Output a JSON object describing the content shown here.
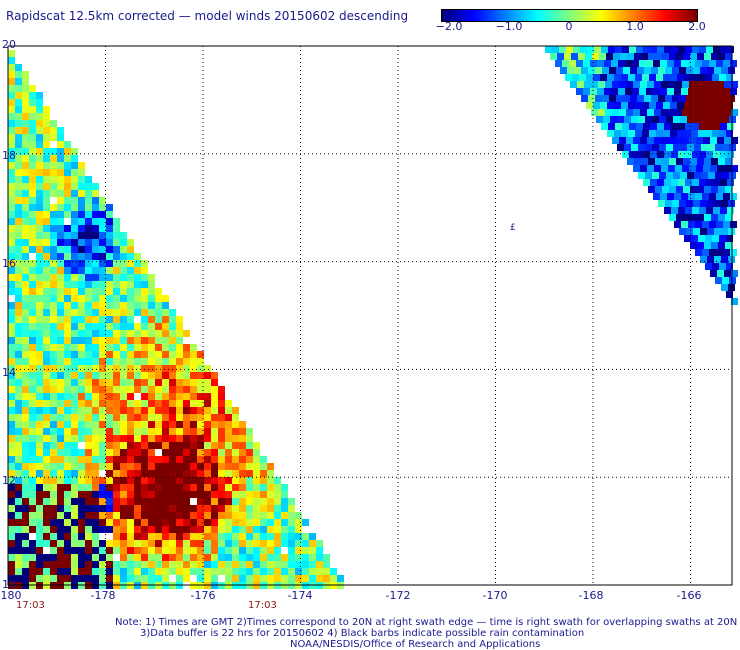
{
  "title": "Rapidscat 12.5km corrected — model winds 20150602 descending",
  "colorbar": {
    "ticks": [
      "−2.0",
      "−1.0",
      "0",
      "1.0",
      "2.0"
    ],
    "tick_values": [
      -2.0,
      -1.0,
      0,
      1.0,
      2.0
    ],
    "colors": [
      "#00007a",
      "#0000ff",
      "#0080ff",
      "#00ffff",
      "#80ff80",
      "#ffff00",
      "#ff8000",
      "#ff0000",
      "#7a0000"
    ]
  },
  "map": {
    "lon_labels": [
      "-180",
      "-178",
      "-176",
      "-174",
      "-172",
      "-170",
      "-168",
      "-166"
    ],
    "lon_values": [
      -180,
      -178,
      -176,
      -174,
      -172,
      -170,
      -168,
      -166
    ],
    "lat_labels": [
      "20",
      "18",
      "16",
      "14",
      "12",
      "10"
    ],
    "lat_values": [
      20,
      18,
      16,
      14,
      12,
      10
    ],
    "time_labels": [
      "17:03",
      "17:03"
    ],
    "time_label_lons": [
      -180,
      -175
    ],
    "island_label": "£"
  },
  "notes": {
    "line1": "Note: 1) Times are GMT 2)Times correspond to 20N at right swath edge — time is right swath for overlapping swaths at 20N",
    "line2": "3)Data buffer is 22 hrs for 20150602 4) Black barbs indicate possible rain contamination",
    "line3": "NOAA/NESDIS/Office of Research and Applications"
  }
}
